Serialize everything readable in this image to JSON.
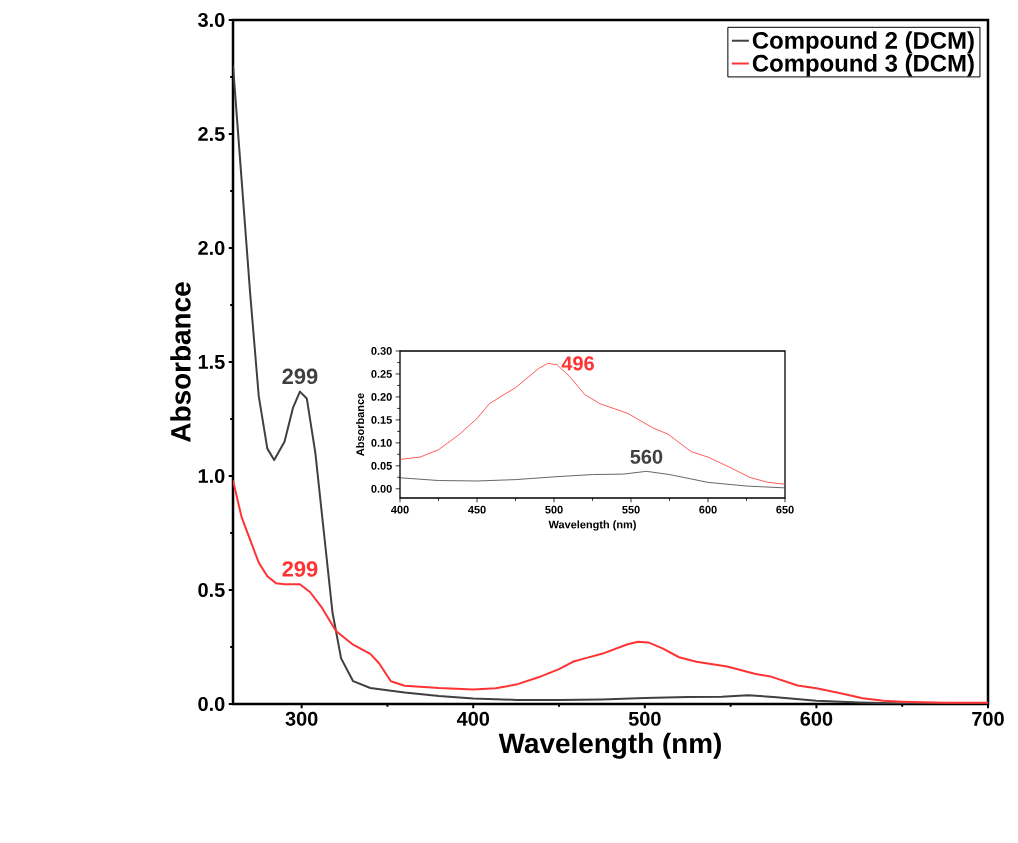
{
  "chart_data": [
    {
      "type": "line",
      "xlabel": "Wavelength (nm)",
      "ylabel": "Absorbance",
      "xlim": [
        260,
        700
      ],
      "ylim": [
        0,
        3.0
      ],
      "xticks": [
        300,
        400,
        500,
        600,
        700
      ],
      "yticks": [
        {
          "value": 0,
          "label": "0.0"
        },
        0.5,
        {
          "value": 1,
          "label": "1.0"
        },
        1.5,
        {
          "value": 2,
          "label": "2.0"
        },
        2.5,
        {
          "value": 3,
          "label": "3.0"
        }
      ],
      "legend": "top right",
      "marker": "none",
      "line_style": "solid",
      "grid": false,
      "series": [
        {
          "name": "Compound 2 (DCM)",
          "color": "#404040",
          "x": [
            260,
            265,
            270,
            275,
            280,
            284,
            290,
            295,
            299,
            303,
            308,
            313,
            318,
            323,
            330,
            340,
            360,
            380,
            400,
            425,
            450,
            475,
            500,
            525,
            545,
            560,
            575,
            600,
            625,
            650,
            675,
            700
          ],
          "values": [
            2.8,
            2.3,
            1.8,
            1.35,
            1.12,
            1.07,
            1.15,
            1.3,
            1.37,
            1.34,
            1.1,
            0.75,
            0.4,
            0.2,
            0.1,
            0.07,
            0.05,
            0.035,
            0.024,
            0.018,
            0.017,
            0.02,
            0.026,
            0.031,
            0.032,
            0.038,
            0.031,
            0.014,
            0.006,
            0.002,
            0.001,
            0.0
          ]
        },
        {
          "name": "Compound 3 (DCM)",
          "color": "#ff3333",
          "x": [
            260,
            265,
            270,
            275,
            280,
            285,
            290,
            299,
            305,
            312,
            320,
            330,
            340,
            345,
            352,
            360,
            380,
            400,
            413,
            425,
            438,
            450,
            458,
            465,
            475,
            490,
            496,
            502,
            510,
            520,
            530,
            548,
            564,
            574,
            589,
            600,
            614,
            627,
            639,
            650,
            675,
            700
          ],
          "values": [
            0.98,
            0.82,
            0.72,
            0.62,
            0.56,
            0.53,
            0.525,
            0.525,
            0.49,
            0.42,
            0.32,
            0.26,
            0.22,
            0.18,
            0.1,
            0.08,
            0.07,
            0.064,
            0.069,
            0.085,
            0.117,
            0.153,
            0.185,
            0.2,
            0.22,
            0.262,
            0.273,
            0.27,
            0.245,
            0.205,
            0.185,
            0.164,
            0.133,
            0.119,
            0.081,
            0.069,
            0.047,
            0.025,
            0.014,
            0.01,
            0.005,
            0.005
          ]
        }
      ],
      "annotations": [
        {
          "text": "299",
          "x": 299,
          "y": 1.37
        },
        {
          "text": "299",
          "x": 299,
          "y": 0.525
        }
      ]
    },
    {
      "type": "line",
      "xlabel": "Wavelength (nm)",
      "ylabel": "Absorbance",
      "xlim": [
        400,
        650
      ],
      "ylim": [
        -0.02,
        0.3
      ],
      "xticks": [
        400,
        450,
        500,
        550,
        600,
        650
      ],
      "yticks": [
        {
          "value": 0,
          "label": "0.00"
        },
        {
          "value": 0.05,
          "label": "0.05"
        },
        {
          "value": 0.1,
          "label": "0.10"
        },
        {
          "value": 0.15,
          "label": "0.15"
        },
        {
          "value": 0.2,
          "label": "0.20"
        },
        {
          "value": 0.25,
          "label": "0.25"
        },
        {
          "value": 0.3,
          "label": "0.30"
        }
      ],
      "marker": "none",
      "line_style": "solid",
      "grid": false,
      "series": [
        {
          "color": "#404040",
          "x": [
            400,
            425,
            450,
            475,
            500,
            525,
            545,
            560,
            575,
            600,
            625,
            650
          ],
          "values": [
            0.024,
            0.018,
            0.017,
            0.02,
            0.026,
            0.031,
            0.032,
            0.038,
            0.031,
            0.014,
            0.006,
            0.002
          ]
        },
        {
          "color": "#ff3333",
          "x": [
            400,
            413,
            425,
            438,
            450,
            458,
            465,
            475,
            490,
            496,
            502,
            510,
            520,
            530,
            548,
            564,
            574,
            589,
            600,
            614,
            627,
            639,
            650
          ],
          "values": [
            0.064,
            0.069,
            0.085,
            0.117,
            0.153,
            0.185,
            0.2,
            0.22,
            0.262,
            0.273,
            0.27,
            0.245,
            0.205,
            0.185,
            0.164,
            0.133,
            0.119,
            0.081,
            0.069,
            0.047,
            0.025,
            0.014,
            0.01
          ]
        }
      ],
      "annotations": [
        {
          "text": "496",
          "x": 496,
          "y": 0.273
        },
        {
          "text": "560",
          "x": 560,
          "y": 0.038
        }
      ]
    }
  ]
}
